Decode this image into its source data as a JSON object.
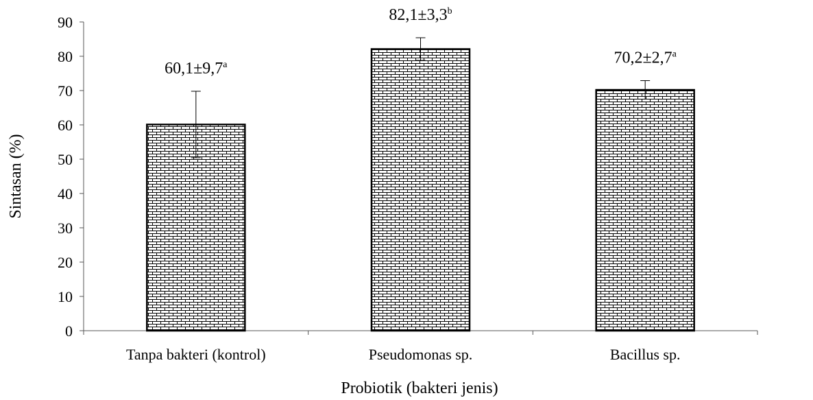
{
  "chart_data": {
    "type": "bar",
    "title": "",
    "xlabel": "Probiotik (bakteri jenis)",
    "ylabel": "Sintasan (%)",
    "ylim": [
      0,
      90
    ],
    "yticks": [
      0,
      10,
      20,
      30,
      40,
      50,
      60,
      70,
      80,
      90
    ],
    "categories": [
      "Tanpa bakteri (kontrol)",
      "Pseudomonas sp.",
      "Bacillus sp."
    ],
    "values": [
      60.1,
      82.1,
      70.2
    ],
    "errors": [
      9.7,
      3.3,
      2.7
    ],
    "labels": [
      {
        "text": "60,1±9,7",
        "sup": "a"
      },
      {
        "text": "82,1±3,3",
        "sup": "b"
      },
      {
        "text": "70,2±2,7",
        "sup": "a"
      }
    ],
    "grid": false,
    "bar_fill": "brick-pattern"
  }
}
